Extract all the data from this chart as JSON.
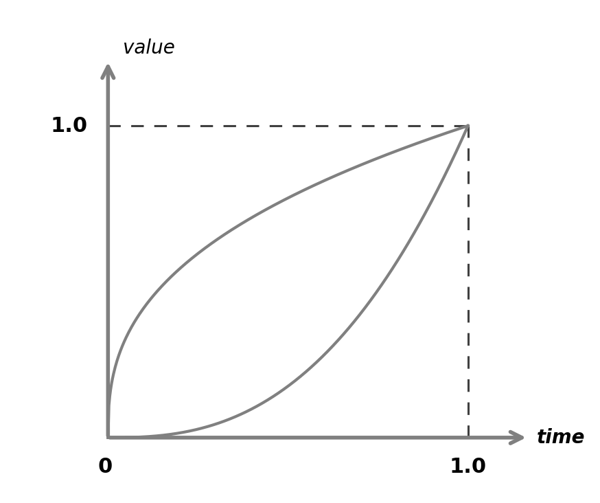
{
  "background_color": "#ffffff",
  "curve_color": "#808080",
  "curve_linewidth": 3.0,
  "dashed_color": "#404040",
  "dashed_linewidth": 2.2,
  "axis_color": "#808080",
  "axis_linewidth": 4.0,
  "xlabel": "time",
  "ylabel": "value",
  "x_tick_0": "0",
  "x_tick_1": "1.0",
  "y_tick_1": "1.0",
  "label_fontsize": 20,
  "tick_fontsize": 22,
  "ease_out_exp": 0.38,
  "ease_in_exp": 2.6,
  "fig_width": 8.74,
  "fig_height": 7.32,
  "dpi": 100
}
